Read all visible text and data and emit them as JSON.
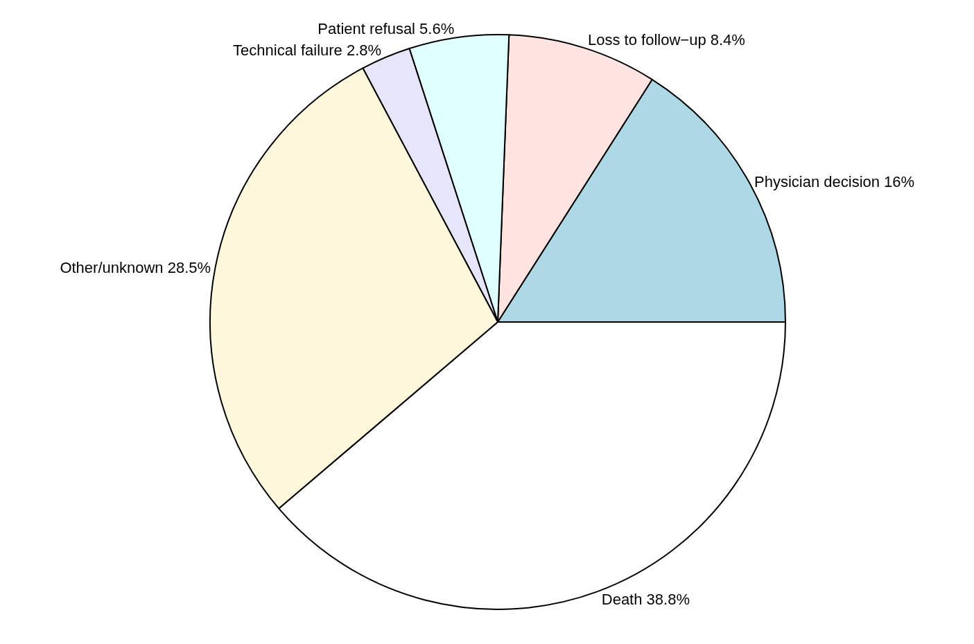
{
  "chart_data": {
    "type": "pie",
    "categories": [
      "Death",
      "Physician decision",
      "Loss to follow−up",
      "Patient refusal",
      "Technical failure",
      "Other/unknown"
    ],
    "values": [
      38.8,
      16,
      8.4,
      5.6,
      2.8,
      28.5
    ],
    "value_labels": [
      "38.8%",
      "16%",
      "8.4%",
      "5.6%",
      "2.8%",
      "28.5%"
    ],
    "colors": [
      "#ffffff",
      "#add8e6",
      "#ffe4e1",
      "#e0ffff",
      "#e6e6fa",
      "#fff8dc"
    ],
    "legend": false
  }
}
